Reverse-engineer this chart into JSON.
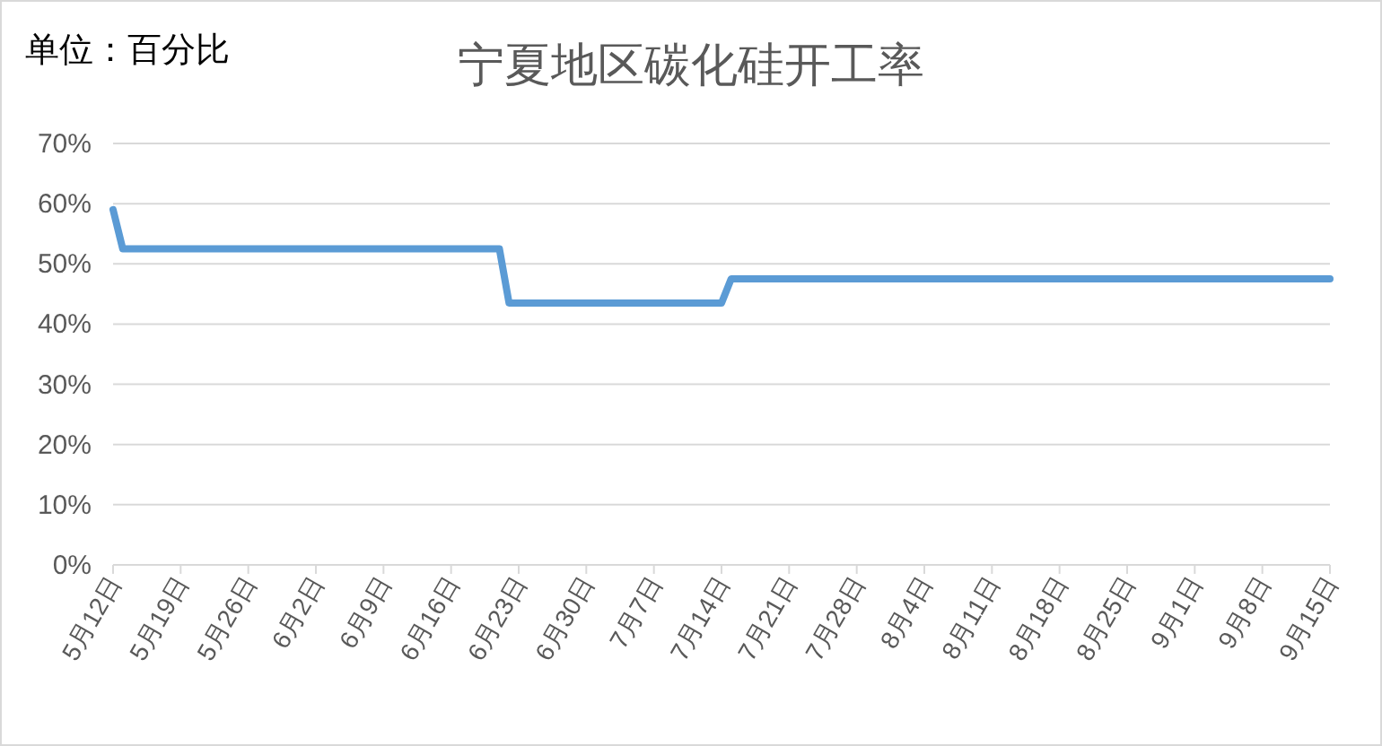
{
  "chart_data": {
    "type": "line",
    "title": "宁夏地区碳化硅开工率",
    "annotations": [
      "单位：百分比"
    ],
    "x": [
      "--05-12",
      "--05-13",
      "--06-21",
      "--06-22",
      "--07-14",
      "--07-15",
      "--09-15"
    ],
    "series": [
      {
        "color": "#5b9bd5",
        "values": [
          59,
          52.5,
          52.5,
          43.5,
          43.5,
          47.5,
          47.5
        ]
      }
    ],
    "xlim": [
      "--05-12",
      "--09-15"
    ],
    "xticks": [
      {
        "value": "--05-12",
        "label": "5月12日"
      },
      {
        "value": "--05-19",
        "label": "5月19日"
      },
      {
        "value": "--05-26",
        "label": "5月26日"
      },
      {
        "value": "--06-02",
        "label": "6月2日"
      },
      {
        "value": "--06-09",
        "label": "6月9日"
      },
      {
        "value": "--06-16",
        "label": "6月16日"
      },
      {
        "value": "--06-23",
        "label": "6月23日"
      },
      {
        "value": "--06-30",
        "label": "6月30日"
      },
      {
        "value": "--07-07",
        "label": "7月7日"
      },
      {
        "value": "--07-14",
        "label": "7月14日"
      },
      {
        "value": "--07-21",
        "label": "7月21日"
      },
      {
        "value": "--07-28",
        "label": "7月28日"
      },
      {
        "value": "--08-04",
        "label": "8月4日"
      },
      {
        "value": "--08-11",
        "label": "8月11日"
      },
      {
        "value": "--08-18",
        "label": "8月18日"
      },
      {
        "value": "--08-25",
        "label": "8月25日"
      },
      {
        "value": "--09-01",
        "label": "9月1日"
      },
      {
        "value": "--09-08",
        "label": "9月8日"
      },
      {
        "value": "--09-15",
        "label": "9月15日"
      }
    ],
    "ylim": [
      0,
      70
    ],
    "yticks": [
      {
        "value": 0,
        "label": "0%"
      },
      {
        "value": 10,
        "label": "10%"
      },
      {
        "value": 20,
        "label": "20%"
      },
      {
        "value": 30,
        "label": "30%"
      },
      {
        "value": 40,
        "label": "40%"
      },
      {
        "value": 50,
        "label": "50%"
      },
      {
        "value": 60,
        "label": "60%"
      },
      {
        "value": 70,
        "label": "70%"
      }
    ],
    "grid": "y",
    "marker": "none",
    "line_style": "solid"
  }
}
